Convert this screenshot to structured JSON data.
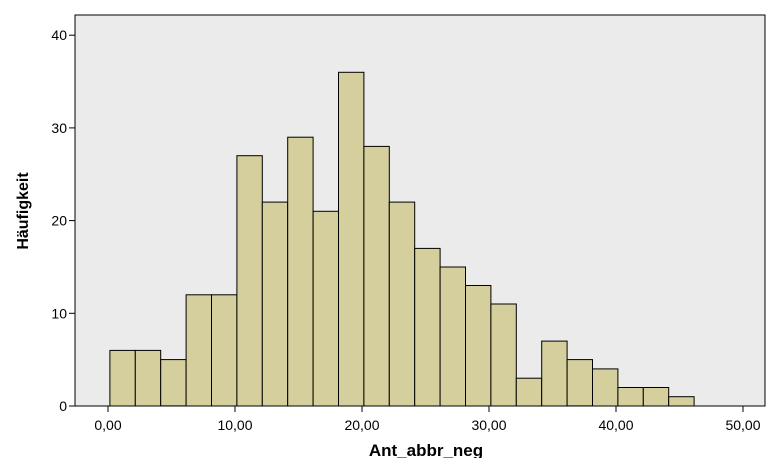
{
  "chart_data": {
    "type": "bar",
    "histogram": true,
    "bin_width": 2.0,
    "bins_start": [
      0,
      2,
      4,
      6,
      8,
      10,
      12,
      14,
      16,
      18,
      20,
      22,
      24,
      26,
      28,
      30,
      32,
      34,
      36,
      38,
      40,
      42,
      44
    ],
    "values": [
      6,
      6,
      5,
      12,
      12,
      27,
      22,
      29,
      21,
      36,
      28,
      22,
      17,
      15,
      13,
      11,
      3,
      7,
      5,
      4,
      2,
      2,
      1
    ],
    "xlabel": "Ant_abbr_neg",
    "ylabel": "Häufigkeit",
    "xlim": [
      -2.5,
      50.5
    ],
    "ylim": [
      0,
      40
    ],
    "x_ticks": [
      {
        "value": 0,
        "label": "0,00"
      },
      {
        "value": 10,
        "label": "10,00"
      },
      {
        "value": 20,
        "label": "20,00"
      },
      {
        "value": 30,
        "label": "30,00"
      },
      {
        "value": 40,
        "label": "40,00"
      },
      {
        "value": 50,
        "label": "50,00"
      }
    ],
    "y_ticks": [
      {
        "value": 0,
        "label": "0"
      },
      {
        "value": 10,
        "label": "10"
      },
      {
        "value": 20,
        "label": "20"
      },
      {
        "value": 30,
        "label": "30"
      },
      {
        "value": 40,
        "label": "40"
      }
    ],
    "grid": false,
    "colors": {
      "bar_fill": "#d4cf9c",
      "bar_stroke": "#000000",
      "plot_background": "#ebebeb"
    }
  }
}
